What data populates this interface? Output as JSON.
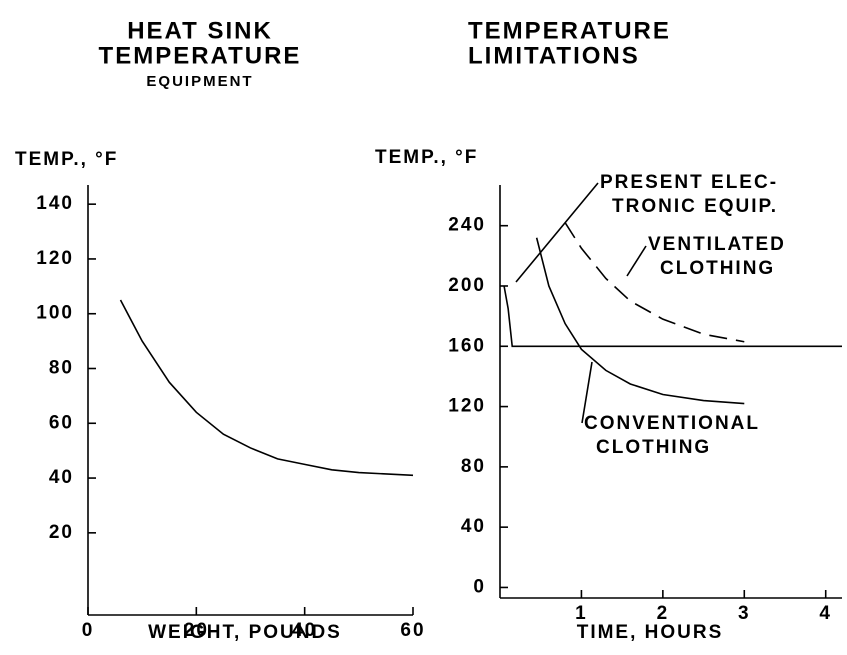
{
  "chart_data": [
    {
      "type": "line",
      "title": [
        "HEAT SINK",
        "TEMPERATURE"
      ],
      "subtitle": "EQUIPMENT",
      "ylabel": "TEMP., °F",
      "xlabel": "WEIGHT, POUNDS",
      "xlim": [
        0,
        60
      ],
      "xticks": [
        0,
        20,
        40,
        60
      ],
      "ylim": [
        -10,
        147
      ],
      "yticks": [
        20,
        40,
        60,
        80,
        100,
        120,
        140
      ],
      "series": [
        {
          "color": "#000000",
          "x": [
            6,
            10,
            15,
            20,
            25,
            30,
            35,
            40,
            45,
            50,
            55,
            60
          ],
          "values": [
            105,
            90,
            75,
            64,
            56,
            51,
            47,
            45,
            43,
            42,
            41.5,
            41
          ]
        }
      ]
    },
    {
      "type": "line",
      "title": [
        "TEMPERATURE",
        "LIMITATIONS"
      ],
      "ylabel": "TEMP., °F",
      "xlabel": "TIME, HOURS",
      "xlim": [
        0,
        4.2
      ],
      "xticks": [
        1,
        2,
        3,
        4
      ],
      "ylim": [
        -7,
        267
      ],
      "yticks": [
        0,
        40,
        80,
        120,
        160,
        200,
        240
      ],
      "series": [
        {
          "name": [
            "PRESENT ELEC-",
            "TRONIC EQUIP."
          ],
          "color": "#000000",
          "x": [
            0.05,
            0.1,
            0.15,
            4.2
          ],
          "values": [
            200,
            185,
            160,
            160
          ]
        },
        {
          "name": [
            "VENTILATED",
            "CLOTHING"
          ],
          "color": "#000000",
          "dash": true,
          "x": [
            0.8,
            1,
            1.3,
            1.6,
            2,
            2.5,
            3
          ],
          "values": [
            242,
            225,
            205,
            190,
            178,
            168,
            163
          ]
        },
        {
          "name": [
            "CONVENTIONAL",
            "CLOTHING"
          ],
          "color": "#000000",
          "x": [
            0.45,
            0.6,
            0.8,
            1,
            1.3,
            1.6,
            2,
            2.5,
            3
          ],
          "values": [
            232,
            200,
            175,
            158,
            144,
            135,
            128,
            124,
            122
          ]
        }
      ]
    }
  ]
}
